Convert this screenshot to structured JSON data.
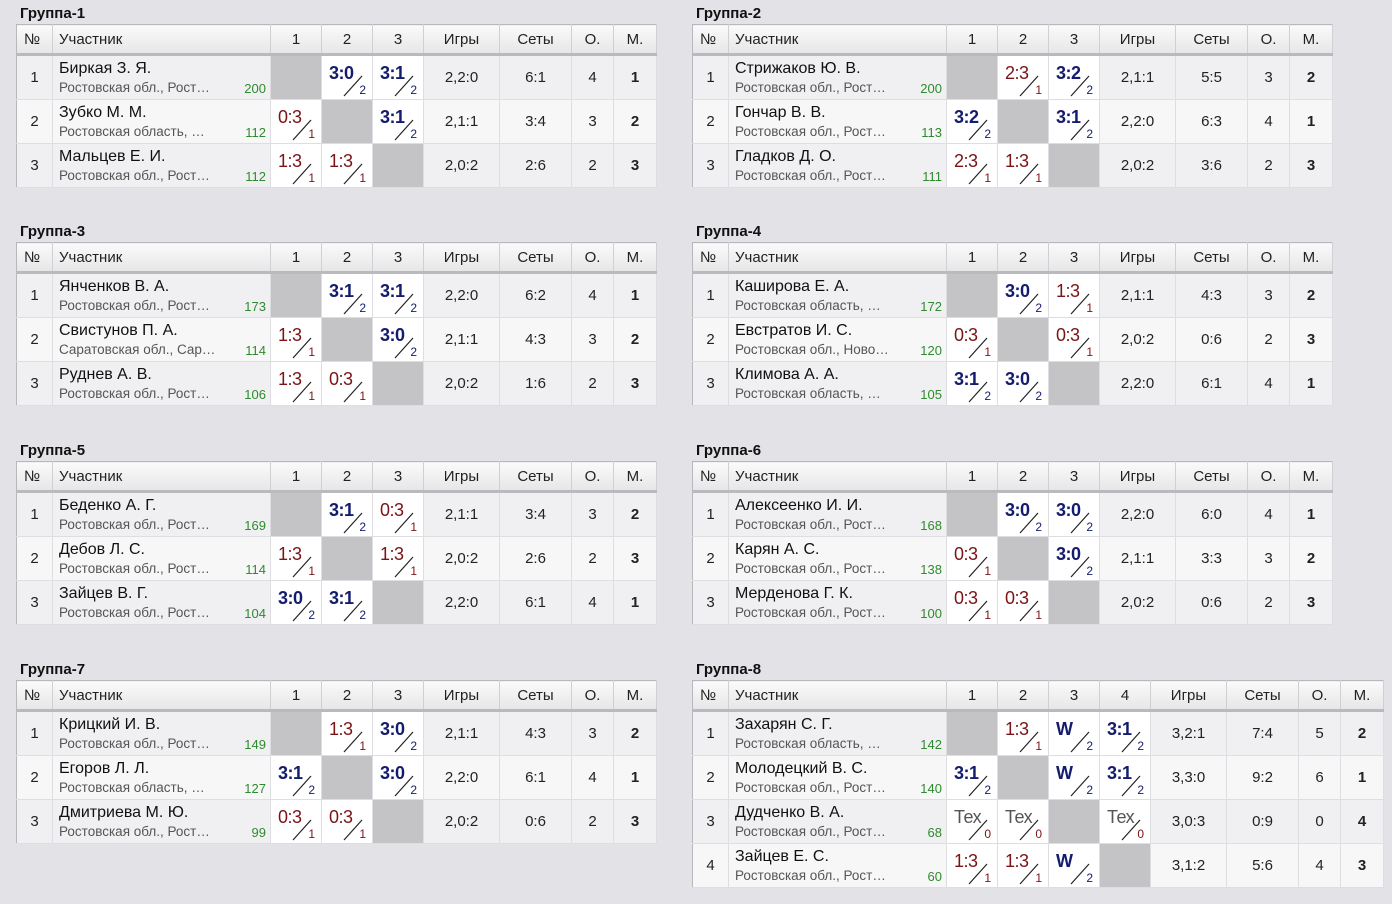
{
  "labels": {
    "col_num": "№",
    "col_participant": "Участник",
    "col_games": "Игры",
    "col_sets": "Сеты",
    "col_points": "О.",
    "col_place": "М."
  },
  "groups": [
    {
      "title": "Группа-1",
      "players": [
        {
          "n": "1",
          "name": "Биркая З. Я.",
          "region": "Ростовская обл., Рост…",
          "rating": "200",
          "games": "2,2:0",
          "sets": "6:1",
          "points": "4",
          "place": "1"
        },
        {
          "n": "2",
          "name": "Зубко М. М.",
          "region": "Ростовская область, …",
          "rating": "112",
          "games": "2,1:1",
          "sets": "3:4",
          "points": "3",
          "place": "2"
        },
        {
          "n": "3",
          "name": "Мальцев Е. И.",
          "region": "Ростовская обл., Рост…",
          "rating": "112",
          "games": "2,0:2",
          "sets": "2:6",
          "points": "2",
          "place": "3"
        }
      ],
      "results": [
        [
          null,
          {
            "s": "3:0",
            "p": "2",
            "w": true
          },
          {
            "s": "3:1",
            "p": "2",
            "w": true
          }
        ],
        [
          {
            "s": "0:3",
            "p": "1",
            "w": false
          },
          null,
          {
            "s": "3:1",
            "p": "2",
            "w": true
          }
        ],
        [
          {
            "s": "1:3",
            "p": "1",
            "w": false
          },
          {
            "s": "1:3",
            "p": "1",
            "w": false
          },
          null
        ]
      ]
    },
    {
      "title": "Группа-2",
      "players": [
        {
          "n": "1",
          "name": "Стрижаков Ю. В.",
          "region": "Ростовская обл., Рост…",
          "rating": "200",
          "games": "2,1:1",
          "sets": "5:5",
          "points": "3",
          "place": "2"
        },
        {
          "n": "2",
          "name": "Гончар В. В.",
          "region": "Ростовская обл., Рост…",
          "rating": "113",
          "games": "2,2:0",
          "sets": "6:3",
          "points": "4",
          "place": "1"
        },
        {
          "n": "3",
          "name": "Гладков Д. О.",
          "region": "Ростовская обл., Рост…",
          "rating": "111",
          "games": "2,0:2",
          "sets": "3:6",
          "points": "2",
          "place": "3"
        }
      ],
      "results": [
        [
          null,
          {
            "s": "2:3",
            "p": "1",
            "w": false
          },
          {
            "s": "3:2",
            "p": "2",
            "w": true
          }
        ],
        [
          {
            "s": "3:2",
            "p": "2",
            "w": true
          },
          null,
          {
            "s": "3:1",
            "p": "2",
            "w": true
          }
        ],
        [
          {
            "s": "2:3",
            "p": "1",
            "w": false
          },
          {
            "s": "1:3",
            "p": "1",
            "w": false
          },
          null
        ]
      ]
    },
    {
      "title": "Группа-3",
      "players": [
        {
          "n": "1",
          "name": "Янченков В. А.",
          "region": "Ростовская обл., Рост…",
          "rating": "173",
          "games": "2,2:0",
          "sets": "6:2",
          "points": "4",
          "place": "1"
        },
        {
          "n": "2",
          "name": "Свистунов П. А.",
          "region": "Саратовская обл., Сар…",
          "rating": "114",
          "games": "2,1:1",
          "sets": "4:3",
          "points": "3",
          "place": "2"
        },
        {
          "n": "3",
          "name": "Руднев А. В.",
          "region": "Ростовская обл., Рост…",
          "rating": "106",
          "games": "2,0:2",
          "sets": "1:6",
          "points": "2",
          "place": "3"
        }
      ],
      "results": [
        [
          null,
          {
            "s": "3:1",
            "p": "2",
            "w": true
          },
          {
            "s": "3:1",
            "p": "2",
            "w": true
          }
        ],
        [
          {
            "s": "1:3",
            "p": "1",
            "w": false
          },
          null,
          {
            "s": "3:0",
            "p": "2",
            "w": true
          }
        ],
        [
          {
            "s": "1:3",
            "p": "1",
            "w": false
          },
          {
            "s": "0:3",
            "p": "1",
            "w": false
          },
          null
        ]
      ]
    },
    {
      "title": "Группа-4",
      "players": [
        {
          "n": "1",
          "name": "Каширова Е. А.",
          "region": "Ростовская область, …",
          "rating": "172",
          "games": "2,1:1",
          "sets": "4:3",
          "points": "3",
          "place": "2"
        },
        {
          "n": "2",
          "name": "Евстратов И. С.",
          "region": "Ростовская обл., Ново…",
          "rating": "120",
          "games": "2,0:2",
          "sets": "0:6",
          "points": "2",
          "place": "3"
        },
        {
          "n": "3",
          "name": "Климова А. А.",
          "region": "Ростовская область, …",
          "rating": "105",
          "games": "2,2:0",
          "sets": "6:1",
          "points": "4",
          "place": "1"
        }
      ],
      "results": [
        [
          null,
          {
            "s": "3:0",
            "p": "2",
            "w": true
          },
          {
            "s": "1:3",
            "p": "1",
            "w": false
          }
        ],
        [
          {
            "s": "0:3",
            "p": "1",
            "w": false
          },
          null,
          {
            "s": "0:3",
            "p": "1",
            "w": false
          }
        ],
        [
          {
            "s": "3:1",
            "p": "2",
            "w": true
          },
          {
            "s": "3:0",
            "p": "2",
            "w": true
          },
          null
        ]
      ]
    },
    {
      "title": "Группа-5",
      "players": [
        {
          "n": "1",
          "name": "Беденко А. Г.",
          "region": "Ростовская обл., Рост…",
          "rating": "169",
          "games": "2,1:1",
          "sets": "3:4",
          "points": "3",
          "place": "2"
        },
        {
          "n": "2",
          "name": "Дебов Л. С.",
          "region": "Ростовская обл., Рост…",
          "rating": "114",
          "games": "2,0:2",
          "sets": "2:6",
          "points": "2",
          "place": "3"
        },
        {
          "n": "3",
          "name": "Зайцев В. Г.",
          "region": "Ростовская обл., Рост…",
          "rating": "104",
          "games": "2,2:0",
          "sets": "6:1",
          "points": "4",
          "place": "1"
        }
      ],
      "results": [
        [
          null,
          {
            "s": "3:1",
            "p": "2",
            "w": true
          },
          {
            "s": "0:3",
            "p": "1",
            "w": false
          }
        ],
        [
          {
            "s": "1:3",
            "p": "1",
            "w": false
          },
          null,
          {
            "s": "1:3",
            "p": "1",
            "w": false
          }
        ],
        [
          {
            "s": "3:0",
            "p": "2",
            "w": true
          },
          {
            "s": "3:1",
            "p": "2",
            "w": true
          },
          null
        ]
      ]
    },
    {
      "title": "Группа-6",
      "players": [
        {
          "n": "1",
          "name": "Алексеенко И. И.",
          "region": "Ростовская обл., Рост…",
          "rating": "168",
          "games": "2,2:0",
          "sets": "6:0",
          "points": "4",
          "place": "1"
        },
        {
          "n": "2",
          "name": "Карян А. С.",
          "region": "Ростовская обл., Рост…",
          "rating": "138",
          "games": "2,1:1",
          "sets": "3:3",
          "points": "3",
          "place": "2"
        },
        {
          "n": "3",
          "name": "Мерденова Г. К.",
          "region": "Ростовская обл., Рост…",
          "rating": "100",
          "games": "2,0:2",
          "sets": "0:6",
          "points": "2",
          "place": "3"
        }
      ],
      "results": [
        [
          null,
          {
            "s": "3:0",
            "p": "2",
            "w": true
          },
          {
            "s": "3:0",
            "p": "2",
            "w": true
          }
        ],
        [
          {
            "s": "0:3",
            "p": "1",
            "w": false
          },
          null,
          {
            "s": "3:0",
            "p": "2",
            "w": true
          }
        ],
        [
          {
            "s": "0:3",
            "p": "1",
            "w": false
          },
          {
            "s": "0:3",
            "p": "1",
            "w": false
          },
          null
        ]
      ]
    },
    {
      "title": "Группа-7",
      "players": [
        {
          "n": "1",
          "name": "Крицкий И. В.",
          "region": "Ростовская обл., Рост…",
          "rating": "149",
          "games": "2,1:1",
          "sets": "4:3",
          "points": "3",
          "place": "2"
        },
        {
          "n": "2",
          "name": "Егоров Л. Л.",
          "region": "Ростовская область, …",
          "rating": "127",
          "games": "2,2:0",
          "sets": "6:1",
          "points": "4",
          "place": "1"
        },
        {
          "n": "3",
          "name": "Дмитриева М. Ю.",
          "region": "Ростовская обл., Рост…",
          "rating": "99",
          "games": "2,0:2",
          "sets": "0:6",
          "points": "2",
          "place": "3"
        }
      ],
      "results": [
        [
          null,
          {
            "s": "1:3",
            "p": "1",
            "w": false
          },
          {
            "s": "3:0",
            "p": "2",
            "w": true
          }
        ],
        [
          {
            "s": "3:1",
            "p": "2",
            "w": true
          },
          null,
          {
            "s": "3:0",
            "p": "2",
            "w": true
          }
        ],
        [
          {
            "s": "0:3",
            "p": "1",
            "w": false
          },
          {
            "s": "0:3",
            "p": "1",
            "w": false
          },
          null
        ]
      ]
    },
    {
      "title": "Группа-8",
      "players": [
        {
          "n": "1",
          "name": "Захарян С. Г.",
          "region": "Ростовская область, …",
          "rating": "142",
          "games": "3,2:1",
          "sets": "7:4",
          "points": "5",
          "place": "2"
        },
        {
          "n": "2",
          "name": "Молодецкий В. С.",
          "region": "Ростовская обл., Рост…",
          "rating": "140",
          "games": "3,3:0",
          "sets": "9:2",
          "points": "6",
          "place": "1"
        },
        {
          "n": "3",
          "name": "Дудченко В. А.",
          "region": "Ростовская обл., Рост…",
          "rating": "68",
          "games": "3,0:3",
          "sets": "0:9",
          "points": "0",
          "place": "4"
        },
        {
          "n": "4",
          "name": "Зайцев Е. С.",
          "region": "Ростовская обл., Рост…",
          "rating": "60",
          "games": "3,1:2",
          "sets": "5:6",
          "points": "4",
          "place": "3"
        }
      ],
      "results": [
        [
          null,
          {
            "s": "1:3",
            "p": "1",
            "w": false
          },
          {
            "s": "W",
            "p": "2",
            "w": true
          },
          {
            "s": "3:1",
            "p": "2",
            "w": true
          }
        ],
        [
          {
            "s": "3:1",
            "p": "2",
            "w": true
          },
          null,
          {
            "s": "W",
            "p": "2",
            "w": true
          },
          {
            "s": "3:1",
            "p": "2",
            "w": true
          }
        ],
        [
          {
            "s": "Тех",
            "p": "0",
            "w": false,
            "tex": true
          },
          {
            "s": "Тех",
            "p": "0",
            "w": false,
            "tex": true
          },
          null,
          {
            "s": "Тех",
            "p": "0",
            "w": false,
            "tex": true
          }
        ],
        [
          {
            "s": "1:3",
            "p": "1",
            "w": false
          },
          {
            "s": "1:3",
            "p": "1",
            "w": false
          },
          {
            "s": "W",
            "p": "2",
            "w": true
          },
          null
        ]
      ]
    }
  ]
}
